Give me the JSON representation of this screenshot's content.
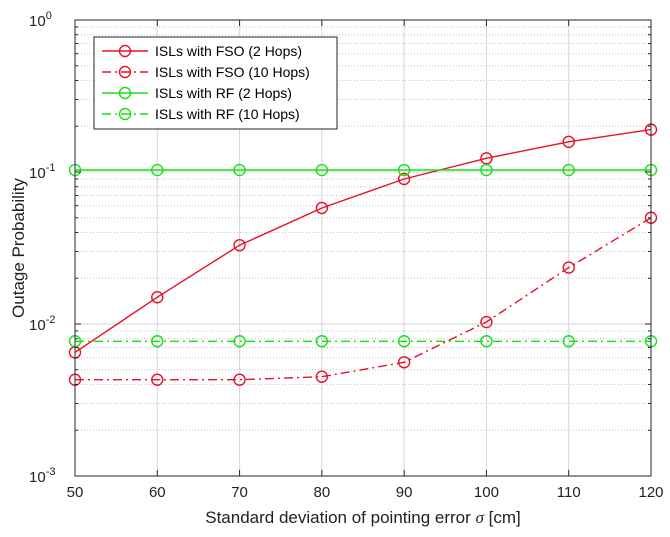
{
  "chart_data": {
    "type": "line",
    "title": "",
    "xlabel": "Standard deviation of pointing error",
    "xlabel_symbol": "σ",
    "xlabel_unit": "[cm]",
    "ylabel": "Outage Probability",
    "y_scale": "log",
    "xlim": [
      50,
      120
    ],
    "ylim": [
      0.001,
      1
    ],
    "x_ticks": [
      "50",
      "60",
      "70",
      "80",
      "90",
      "100",
      "110",
      "120"
    ],
    "y_ticks": [
      {
        "base": "10",
        "exp": "-3",
        "value": 0.001
      },
      {
        "base": "10",
        "exp": "-2",
        "value": 0.01
      },
      {
        "base": "10",
        "exp": "-1",
        "value": 0.1
      },
      {
        "base": "10",
        "exp": "0",
        "value": 1
      }
    ],
    "grid": true,
    "legend_position": "top-left",
    "x": [
      50,
      60,
      70,
      80,
      90,
      100,
      110,
      120
    ],
    "series": [
      {
        "name": "ISLs with FSO (2 Hops)",
        "color": "#e8102a",
        "dash": "solid",
        "marker": "circle",
        "values": [
          0.0065,
          0.015,
          0.033,
          0.058,
          0.09,
          0.123,
          0.158,
          0.19
        ]
      },
      {
        "name": "ISLs with FSO (10 Hops)",
        "color": "#e8102a",
        "dash": "dashdot",
        "marker": "circle",
        "values": [
          0.0043,
          0.0043,
          0.0043,
          0.0045,
          0.0056,
          0.0103,
          0.0235,
          0.05
        ]
      },
      {
        "name": "ISLs with RF (2 Hops)",
        "color": "#18e018",
        "dash": "solid",
        "marker": "circle",
        "values": [
          0.103,
          0.103,
          0.103,
          0.103,
          0.103,
          0.103,
          0.103,
          0.103
        ]
      },
      {
        "name": "ISLs with RF (10 Hops)",
        "color": "#18e018",
        "dash": "dashdot",
        "marker": "circle",
        "values": [
          0.0077,
          0.0077,
          0.0077,
          0.0077,
          0.0077,
          0.0077,
          0.0077,
          0.0077
        ]
      }
    ]
  }
}
